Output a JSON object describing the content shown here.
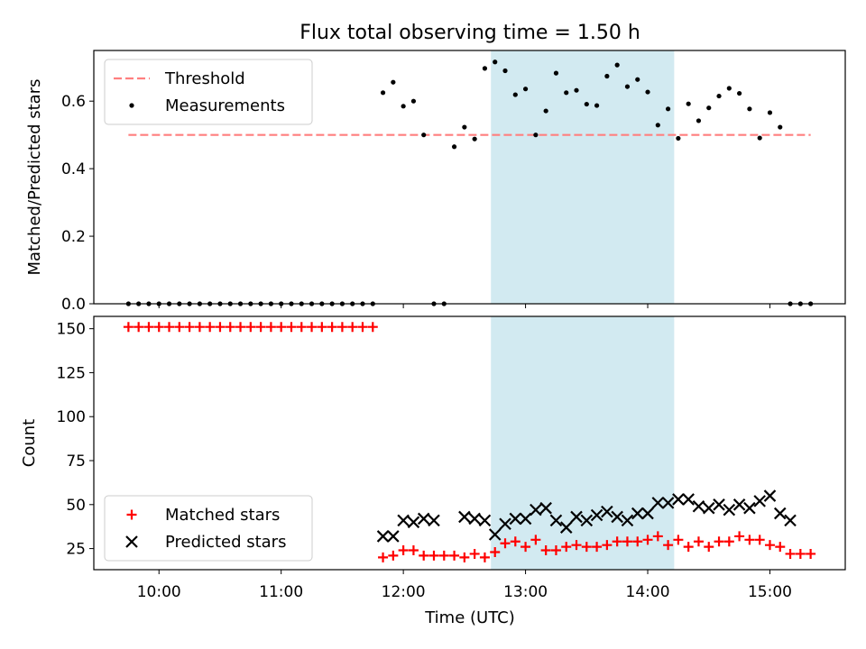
{
  "chart_data": {
    "title": "Flux total observing time = 1.50 h",
    "xlabel": "Time (UTC)",
    "xlim": [
      "09:28",
      "15:37"
    ],
    "xticks": [
      "10:00",
      "11:00",
      "12:00",
      "13:00",
      "14:00",
      "15:00"
    ],
    "highlight_span": {
      "start": "12:43",
      "end": "14:13",
      "color": "#add8e6"
    },
    "panels": [
      {
        "type": "scatter",
        "ylabel": "Matched/Predicted stars",
        "ylim": [
          0,
          0.75
        ],
        "yticks": [
          "0.0",
          "0.2",
          "0.4",
          "0.6"
        ],
        "legend_position": "top-left",
        "threshold": {
          "name": "Threshold",
          "value": 0.5,
          "x_start": "09:45",
          "x_end": "15:20",
          "color": "#ff7f7f"
        },
        "series": [
          {
            "name": "Measurements",
            "color": "#000000",
            "x": [
              "09:45",
              "09:50",
              "09:55",
              "10:00",
              "10:05",
              "10:10",
              "10:15",
              "10:20",
              "10:25",
              "10:30",
              "10:35",
              "10:40",
              "10:45",
              "10:50",
              "10:55",
              "11:00",
              "11:05",
              "11:10",
              "11:15",
              "11:20",
              "11:25",
              "11:30",
              "11:35",
              "11:40",
              "11:45",
              "11:50",
              "11:55",
              "12:00",
              "12:05",
              "12:10",
              "12:15",
              "12:20",
              "12:25",
              "12:30",
              "12:35",
              "12:40",
              "12:45",
              "12:50",
              "12:55",
              "13:00",
              "13:05",
              "13:10",
              "13:15",
              "13:20",
              "13:25",
              "13:30",
              "13:35",
              "13:40",
              "13:45",
              "13:50",
              "13:55",
              "14:00",
              "14:05",
              "14:10",
              "14:15",
              "14:20",
              "14:25",
              "14:30",
              "14:35",
              "14:40",
              "14:45",
              "14:50",
              "14:55",
              "15:00",
              "15:05",
              "15:10",
              "15:15",
              "15:20"
            ],
            "y": [
              0,
              0,
              0,
              0,
              0,
              0,
              0,
              0,
              0,
              0,
              0,
              0,
              0,
              0,
              0,
              0,
              0,
              0,
              0,
              0,
              0,
              0,
              0,
              0,
              0,
              0.625,
              0.656,
              0.585,
              0.6,
              0.5,
              0,
              0,
              0.465,
              0.523,
              0.488,
              0.697,
              0.716,
              0.69,
              0.619,
              0.636,
              0.5,
              0.571,
              0.683,
              0.625,
              0.632,
              0.591,
              0.587,
              0.674,
              0.707,
              0.643,
              0.664,
              0.627,
              0.529,
              0.577,
              0.49,
              0.592,
              0.542,
              0.58,
              0.615,
              0.638,
              0.623,
              0.577,
              0.491,
              0.566,
              0.523,
              0,
              0,
              0
            ]
          }
        ]
      },
      {
        "type": "scatter",
        "ylabel": "Count",
        "ylim": [
          13,
          157
        ],
        "yticks": [
          "25",
          "50",
          "75",
          "100",
          "125",
          "150"
        ],
        "legend_position": "bottom-left",
        "series": [
          {
            "name": "Matched stars",
            "marker": "+",
            "color": "#ff0000",
            "x": [
              "09:45",
              "09:50",
              "09:55",
              "10:00",
              "10:05",
              "10:10",
              "10:15",
              "10:20",
              "10:25",
              "10:30",
              "10:35",
              "10:40",
              "10:45",
              "10:50",
              "10:55",
              "11:00",
              "11:05",
              "11:10",
              "11:15",
              "11:20",
              "11:25",
              "11:30",
              "11:35",
              "11:40",
              "11:45",
              "11:50",
              "11:55",
              "12:00",
              "12:05",
              "12:10",
              "12:15",
              "12:20",
              "12:25",
              "12:30",
              "12:35",
              "12:40",
              "12:45",
              "12:50",
              "12:55",
              "13:00",
              "13:05",
              "13:10",
              "13:15",
              "13:20",
              "13:25",
              "13:30",
              "13:35",
              "13:40",
              "13:45",
              "13:50",
              "13:55",
              "14:00",
              "14:05",
              "14:10",
              "14:15",
              "14:20",
              "14:25",
              "14:30",
              "14:35",
              "14:40",
              "14:45",
              "14:50",
              "14:55",
              "15:00",
              "15:05",
              "15:10",
              "15:15",
              "15:20"
            ],
            "y": [
              151,
              151,
              151,
              151,
              151,
              151,
              151,
              151,
              151,
              151,
              151,
              151,
              151,
              151,
              151,
              151,
              151,
              151,
              151,
              151,
              151,
              151,
              151,
              151,
              151,
              20,
              21,
              24,
              24,
              21,
              21,
              21,
              21,
              20,
              22,
              20,
              23,
              28,
              29,
              26,
              30,
              24,
              24,
              26,
              27,
              26,
              26,
              27,
              29,
              29,
              29,
              30,
              32,
              27,
              30,
              26,
              29,
              26,
              29,
              29,
              32,
              30,
              30,
              27,
              26,
              22,
              22,
              22
            ]
          },
          {
            "name": "Predicted stars",
            "marker": "x",
            "color": "#000000",
            "x": [
              "11:50",
              "11:55",
              "12:00",
              "12:05",
              "12:10",
              "12:15",
              "12:30",
              "12:35",
              "12:40",
              "12:45",
              "12:50",
              "12:55",
              "13:00",
              "13:05",
              "13:10",
              "13:15",
              "13:20",
              "13:25",
              "13:30",
              "13:35",
              "13:40",
              "13:45",
              "13:50",
              "13:55",
              "14:00",
              "14:05",
              "14:10",
              "14:15",
              "14:20",
              "14:25",
              "14:30",
              "14:35",
              "14:40",
              "14:45",
              "14:50",
              "14:55",
              "15:00",
              "15:05",
              "15:10"
            ],
            "y": [
              32,
              32,
              41,
              40,
              42,
              41,
              43,
              42,
              41,
              33,
              39,
              42,
              42,
              47,
              48,
              41,
              37,
              43,
              41,
              44,
              46,
              43,
              41,
              45,
              45,
              51,
              51,
              53,
              53,
              49,
              48,
              50,
              47,
              50,
              48,
              52,
              55,
              45,
              41
            ]
          }
        ]
      }
    ]
  }
}
